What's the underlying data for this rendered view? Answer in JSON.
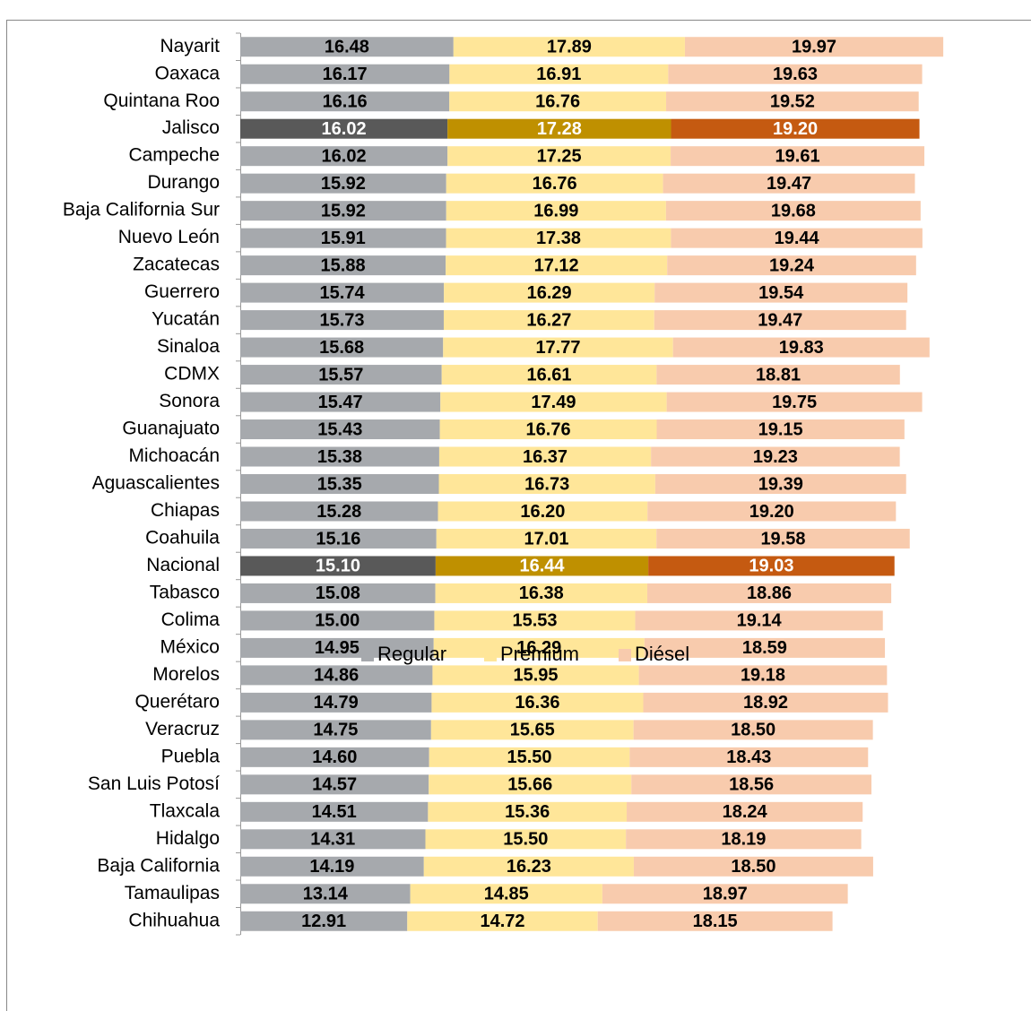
{
  "chart_data": {
    "type": "stacked-bar-horizontal",
    "categories": [
      "Nayarit",
      "Oaxaca",
      "Quintana Roo",
      "Jalisco",
      "Campeche",
      "Durango",
      "Baja California Sur",
      "Nuevo León",
      "Zacatecas",
      "Guerrero",
      "Yucatán",
      "Sinaloa",
      "CDMX",
      "Sonora",
      "Guanajuato",
      "Michoacán",
      "Aguascalientes",
      "Chiapas",
      "Coahuila",
      "Nacional",
      "Tabasco",
      "Colima",
      "México",
      "Morelos",
      "Querétaro",
      "Veracruz",
      "Puebla",
      "San Luis Potosí",
      "Tlaxcala",
      "Hidalgo",
      "Baja California",
      "Tamaulipas",
      "Chihuahua"
    ],
    "highlight": [
      3,
      19
    ],
    "xlim": [
      0,
      54.4
    ],
    "series": [
      {
        "name": "Regular",
        "color": "#a6a9ad",
        "highlight_color": "#595959",
        "values": [
          16.48,
          16.17,
          16.16,
          16.02,
          16.02,
          15.92,
          15.92,
          15.91,
          15.88,
          15.74,
          15.73,
          15.68,
          15.57,
          15.47,
          15.43,
          15.38,
          15.35,
          15.28,
          15.16,
          15.1,
          15.08,
          15.0,
          14.95,
          14.86,
          14.79,
          14.75,
          14.6,
          14.57,
          14.51,
          14.31,
          14.19,
          13.14,
          12.91
        ],
        "value_labels": [
          "16.48",
          "16.17",
          "16.16",
          "16.02",
          "16.02",
          "15.92",
          "15.92",
          "15.91",
          "15.88",
          "15.74",
          "15.73",
          "15.68",
          "15.57",
          "15.47",
          "15.43",
          "15.38",
          "15.35",
          "15.28",
          "15.16",
          "15.10",
          "15.08",
          "15.00",
          "14.95",
          "14.86",
          "14.79",
          "14.75",
          "14.60",
          "14.57",
          "14.51",
          "14.31",
          "14.19",
          "13.14",
          "12.91"
        ]
      },
      {
        "name": "Premium",
        "color": "#ffe699",
        "highlight_color": "#bf9000",
        "values": [
          17.89,
          16.91,
          16.76,
          17.28,
          17.25,
          16.76,
          16.99,
          17.38,
          17.12,
          16.29,
          16.27,
          17.77,
          16.61,
          17.49,
          16.76,
          16.37,
          16.73,
          16.2,
          17.01,
          16.44,
          16.38,
          15.53,
          16.29,
          15.95,
          16.36,
          15.65,
          15.5,
          15.66,
          15.36,
          15.5,
          16.23,
          14.85,
          14.72
        ],
        "value_labels": [
          "17.89",
          "16.91",
          "16.76",
          "17.28",
          "17.25",
          "16.76",
          "16.99",
          "17.38",
          "17.12",
          "16.29",
          "16.27",
          "17.77",
          "16.61",
          "17.49",
          "16.76",
          "16.37",
          "16.73",
          "16.20",
          "17.01",
          "16.44",
          "16.38",
          "15.53",
          "16.29",
          "15.95",
          "16.36",
          "15.65",
          "15.50",
          "15.66",
          "15.36",
          "15.50",
          "16.23",
          "14.85",
          "14.72"
        ]
      },
      {
        "name": "Diésel",
        "color": "#f8cbad",
        "highlight_color": "#c55a11",
        "values": [
          19.97,
          19.63,
          19.52,
          19.2,
          19.61,
          19.47,
          19.68,
          19.44,
          19.24,
          19.54,
          19.47,
          19.83,
          18.81,
          19.75,
          19.15,
          19.23,
          19.39,
          19.2,
          19.58,
          19.03,
          18.86,
          19.14,
          18.59,
          19.18,
          18.92,
          18.5,
          18.43,
          18.56,
          18.24,
          18.19,
          18.5,
          18.97,
          18.15
        ],
        "value_labels": [
          "19.97",
          "19.63",
          "19.52",
          "19.20",
          "19.61",
          "19.47",
          "19.68",
          "19.44",
          "19.24",
          "19.54",
          "19.47",
          "19.83",
          "18.81",
          "19.75",
          "19.15",
          "19.23",
          "19.39",
          "19.20",
          "19.58",
          "19.03",
          "18.86",
          "19.14",
          "18.59",
          "19.18",
          "18.92",
          "18.50",
          "18.43",
          "18.56",
          "18.24",
          "18.19",
          "18.50",
          "18.97",
          "18.15"
        ]
      }
    ]
  }
}
